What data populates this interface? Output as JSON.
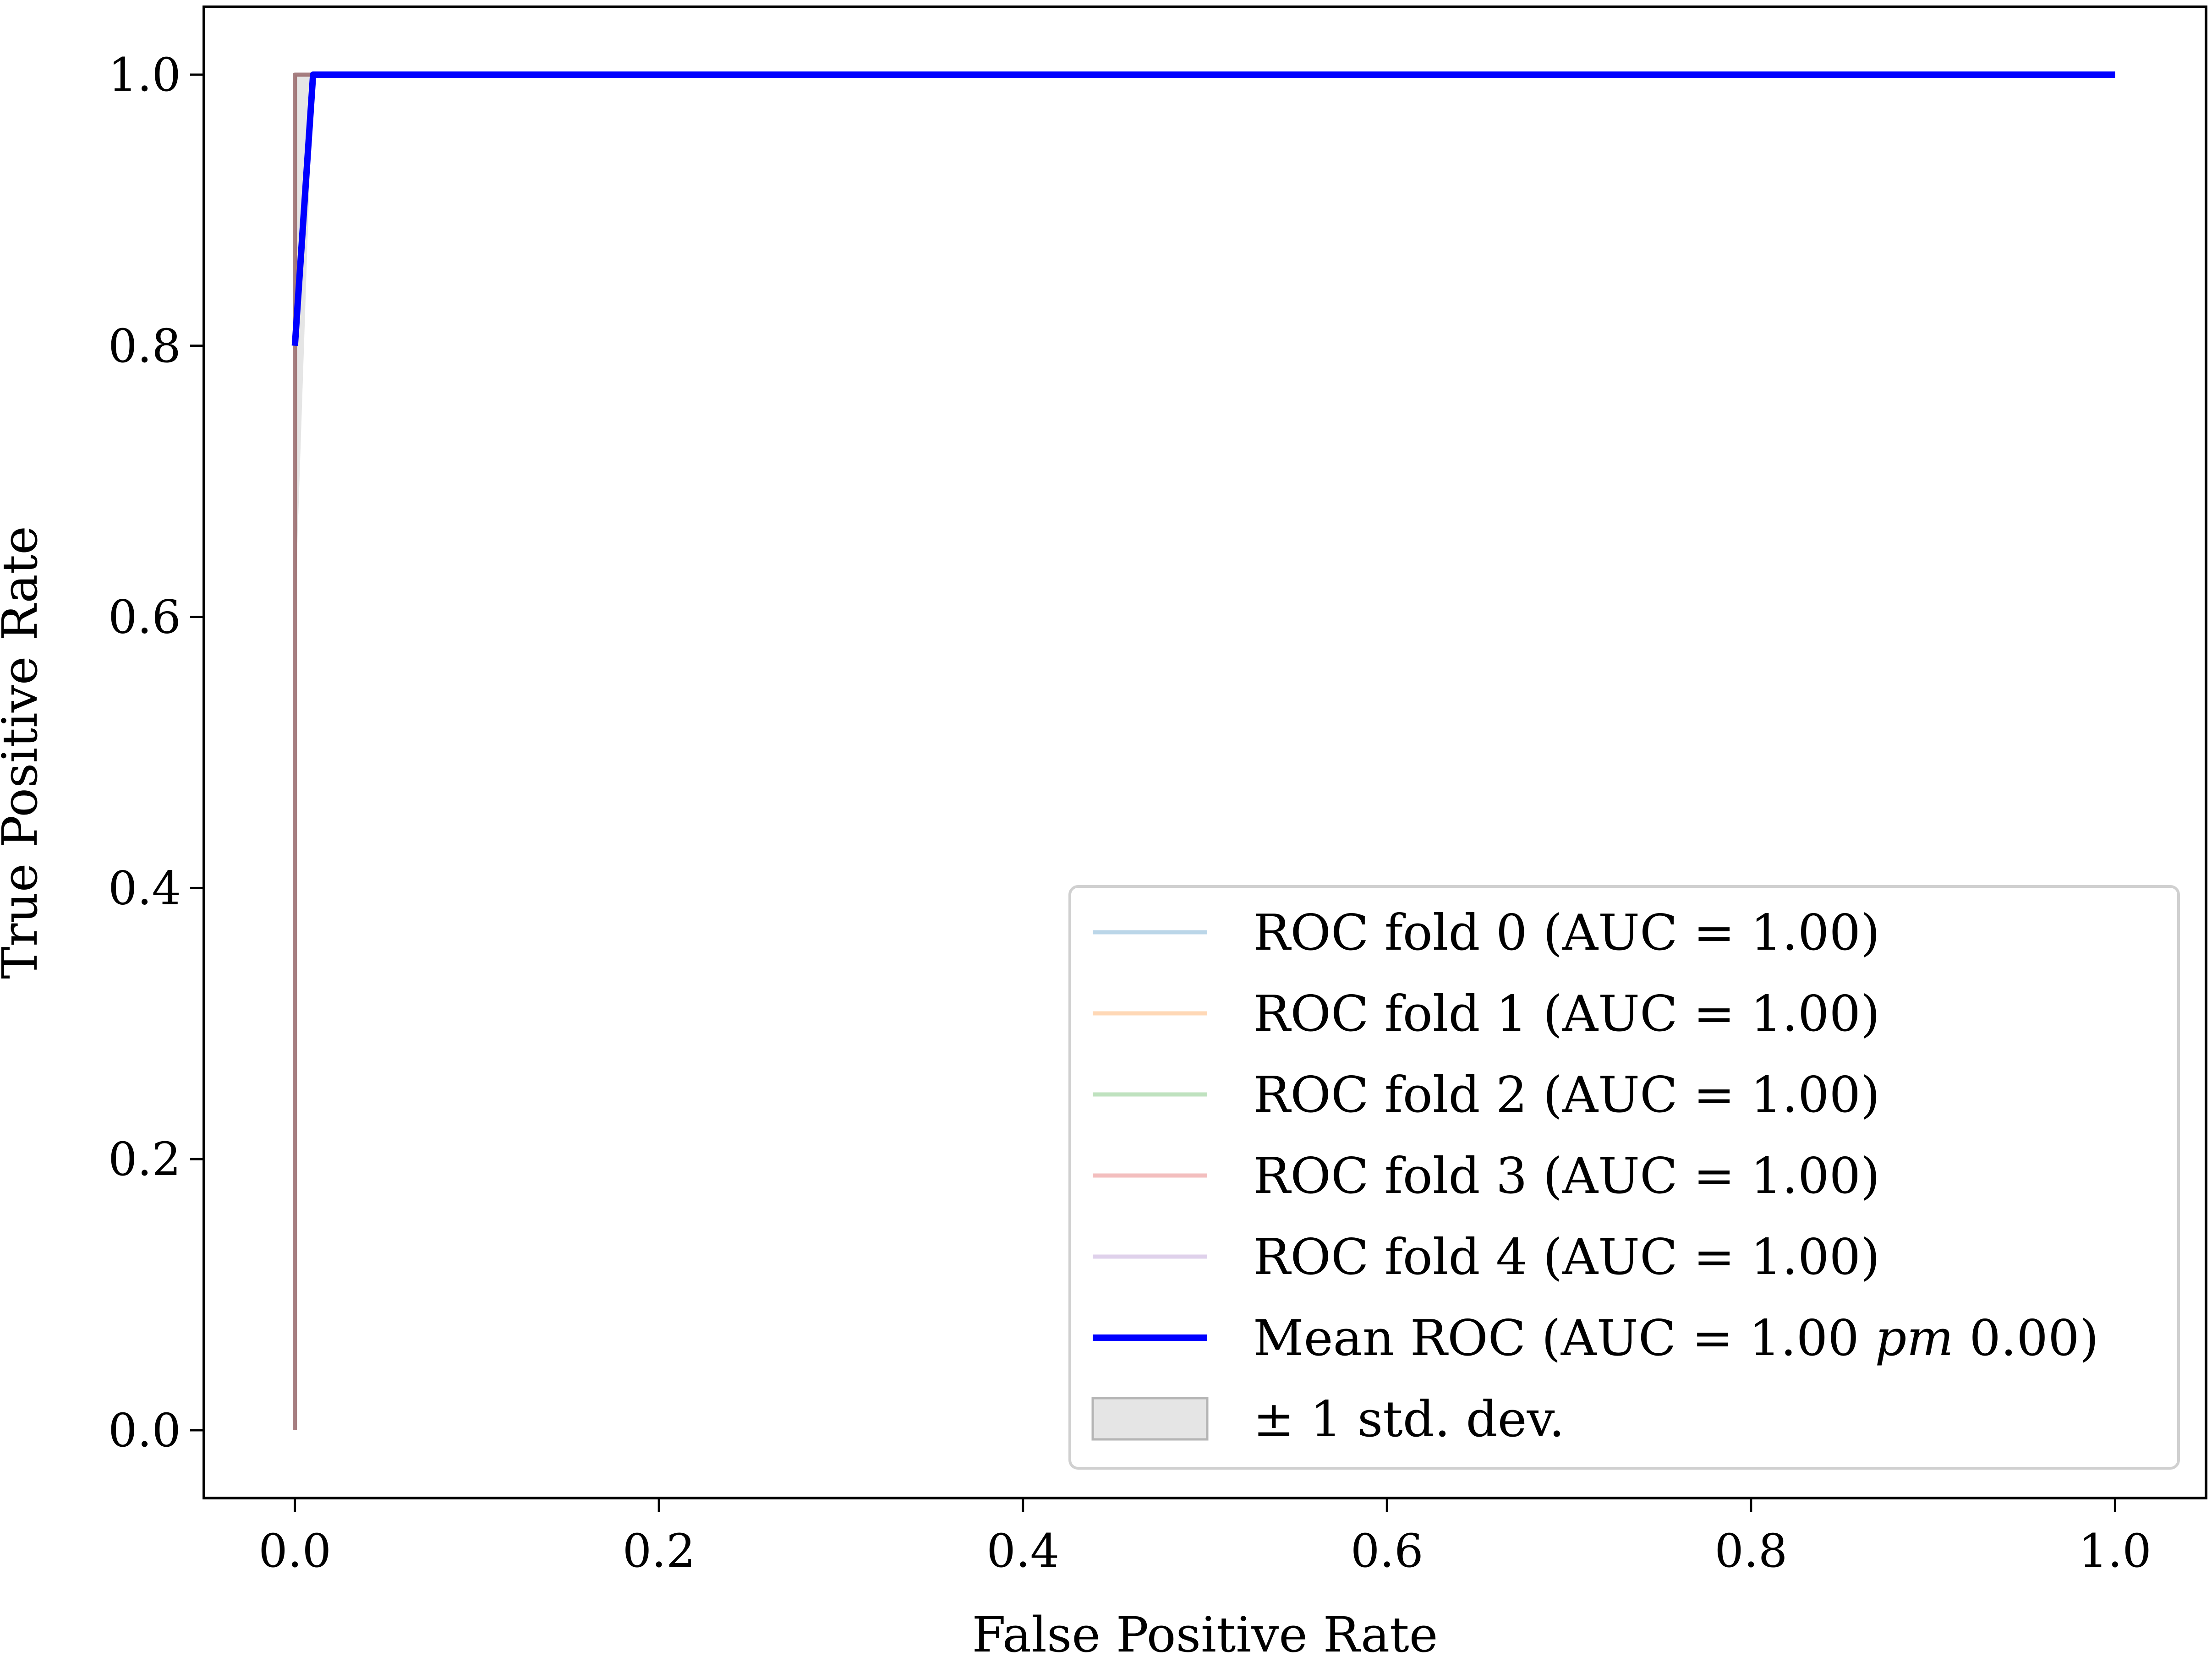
{
  "chart_data": {
    "type": "line",
    "title": "",
    "xlabel": "False Positive Rate",
    "ylabel": "True Positive Rate",
    "xlim": [
      -0.05,
      1.05
    ],
    "ylim": [
      -0.05,
      1.05
    ],
    "xticks": [
      "0.0",
      "0.2",
      "0.4",
      "0.6",
      "0.8",
      "1.0"
    ],
    "yticks": [
      "0.0",
      "0.2",
      "0.4",
      "0.6",
      "0.8",
      "1.0"
    ],
    "grid": false,
    "legend_position": "lower-right",
    "series": [
      {
        "name": "ROC fold 0 (AUC = 1.00)",
        "color": "#1f77b4",
        "opacity": 0.3,
        "x": [
          0.0,
          0.0,
          1.0
        ],
        "y": [
          0.0,
          1.0,
          1.0
        ]
      },
      {
        "name": "ROC fold 1 (AUC = 1.00)",
        "color": "#ff7f0e",
        "opacity": 0.3,
        "x": [
          0.0,
          0.0,
          1.0
        ],
        "y": [
          0.0,
          1.0,
          1.0
        ]
      },
      {
        "name": "ROC fold 2 (AUC = 1.00)",
        "color": "#2ca02c",
        "opacity": 0.3,
        "x": [
          0.0,
          0.0,
          1.0
        ],
        "y": [
          0.0,
          1.0,
          1.0
        ]
      },
      {
        "name": "ROC fold 3 (AUC = 1.00)",
        "color": "#d62728",
        "opacity": 0.3,
        "x": [
          0.0,
          0.0,
          0.01,
          1.0
        ],
        "y": [
          0.0,
          1.0,
          1.0,
          1.0
        ]
      },
      {
        "name": "ROC fold 4 (AUC = 1.00)",
        "color": "#9467bd",
        "opacity": 0.3,
        "x": [
          0.0,
          0.0,
          1.0
        ],
        "y": [
          0.0,
          1.0,
          1.0
        ]
      },
      {
        "name": "Mean ROC (AUC = 1.00 pm 0.00)",
        "name_prefix": "Mean ROC (AUC = 1.00 ",
        "name_italic": "pm",
        "name_suffix": " 0.00)",
        "color": "#0000ff",
        "opacity": 1.0,
        "x": [
          0.0,
          0.01,
          1.0
        ],
        "y": [
          0.8,
          1.0,
          1.0
        ]
      }
    ],
    "band": {
      "name": "± 1 std. dev.",
      "color": "#a9a9a9",
      "opacity": 0.3,
      "x": [
        0.0,
        0.01,
        1.0
      ],
      "upper": [
        1.0,
        1.0,
        1.0
      ],
      "lower": [
        0.6,
        1.0,
        1.0
      ]
    }
  }
}
